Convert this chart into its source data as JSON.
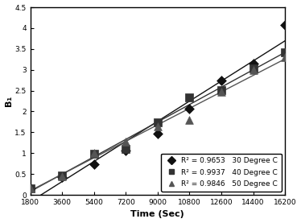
{
  "x_ticks": [
    1800,
    3600,
    5400,
    7200,
    9000,
    10800,
    12600,
    14400,
    16200
  ],
  "x_label": "Time (Sec)",
  "y_label": "B₁",
  "y_lim": [
    0,
    4.5
  ],
  "x_lim": [
    1800,
    16200
  ],
  "series": [
    {
      "label": "30 Degree C",
      "r2": "R² = 0.9653",
      "marker": "D",
      "color": "#111111",
      "x": [
        1800,
        3600,
        5400,
        7200,
        9000,
        10800,
        12600,
        14400,
        16200
      ],
      "y": [
        0.15,
        0.42,
        0.73,
        1.07,
        1.47,
        2.07,
        2.75,
        3.15,
        4.08
      ]
    },
    {
      "label": "40 Degree C",
      "r2": "R² = 0.9937",
      "marker": "s",
      "color": "#333333",
      "x": [
        1800,
        3600,
        5400,
        7200,
        9000,
        10800,
        12600,
        14400,
        16200
      ],
      "y": [
        0.15,
        0.47,
        0.99,
        1.1,
        1.73,
        2.33,
        2.52,
        3.03,
        3.42
      ]
    },
    {
      "label": "50 Degree C",
      "r2": "R² = 0.9846",
      "marker": "^",
      "color": "#555555",
      "x": [
        1800,
        3600,
        5400,
        7200,
        9000,
        10800,
        12600,
        14400,
        16200
      ],
      "y": [
        0.15,
        0.45,
        1.01,
        1.28,
        1.65,
        1.8,
        2.48,
        3.0,
        3.3
      ]
    }
  ],
  "legend_r2": [
    "R² = 0.9653",
    "R² = 0.9937",
    "R² = 0.9846"
  ],
  "legend_labels": [
    "30 Degree C",
    "40 Degree C",
    "50 Degree C"
  ],
  "background_color": "#ffffff",
  "outer_border_color": "#aaaaaa"
}
